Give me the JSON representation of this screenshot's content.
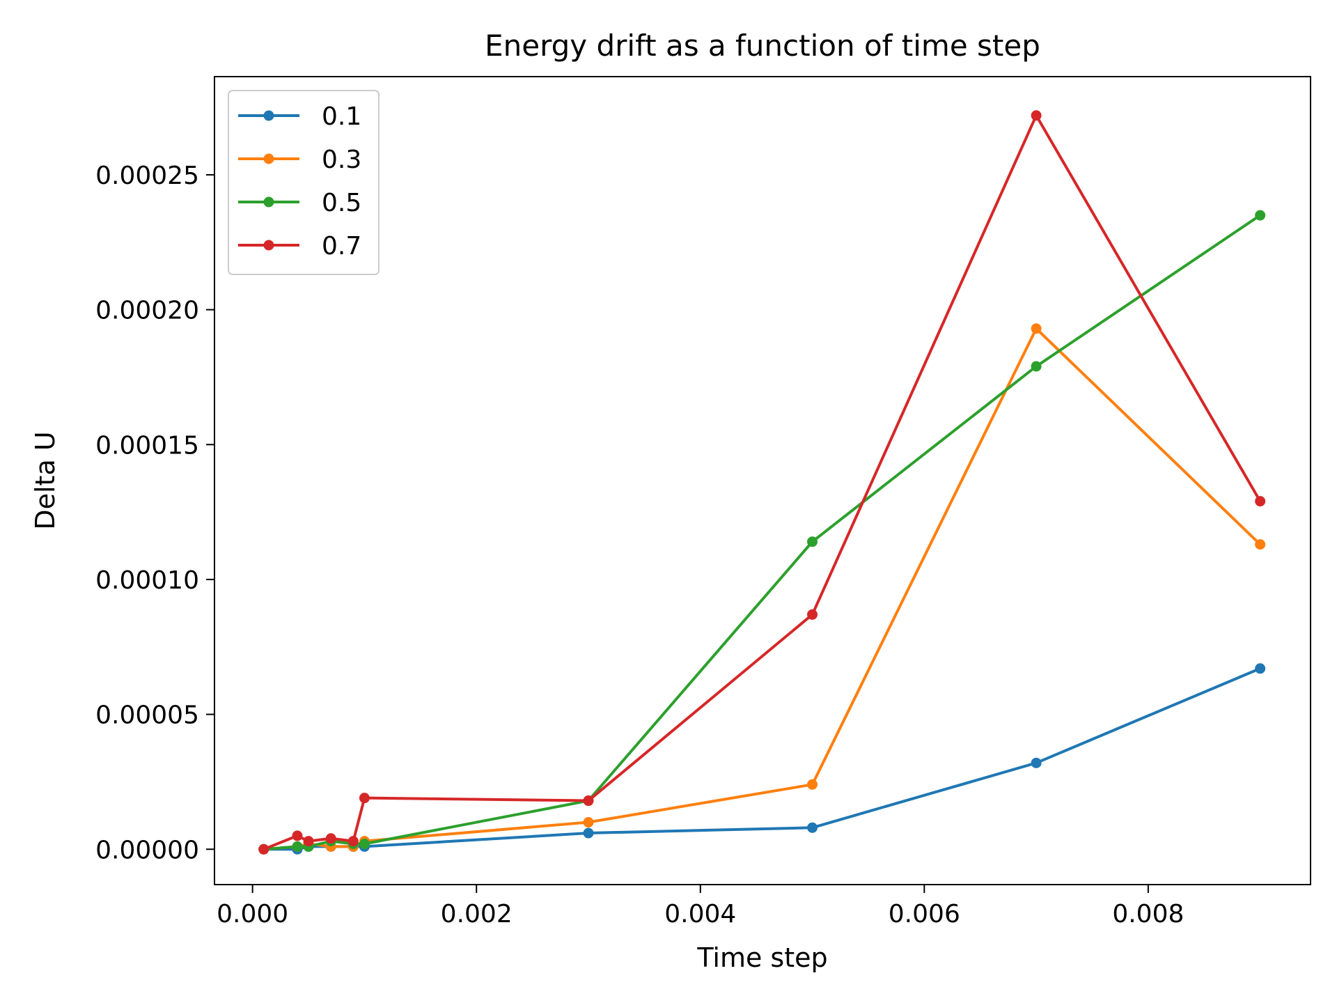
{
  "chart_data": {
    "type": "line",
    "title": "Energy drift as a function of time step",
    "xlabel": "Time step",
    "ylabel": "Delta U",
    "xlim": [
      -0.00034,
      0.00945
    ],
    "ylim": [
      -1.31e-05,
      0.0002864
    ],
    "xticks": [
      0.0,
      0.002,
      0.004,
      0.006,
      0.008
    ],
    "xtick_labels": [
      "0.000",
      "0.002",
      "0.004",
      "0.006",
      "0.008"
    ],
    "yticks": [
      0.0,
      5e-05,
      0.0001,
      0.00015,
      0.0002,
      0.00025
    ],
    "ytick_labels": [
      "0.00000",
      "0.00005",
      "0.00010",
      "0.00015",
      "0.00020",
      "0.00025"
    ],
    "grid": false,
    "legend_position": "top-left",
    "markers": true,
    "series": [
      {
        "name": "0.1",
        "color": "#1f77b4",
        "x": [
          0.0001,
          0.0004,
          0.0005,
          0.0007,
          0.0009,
          0.001,
          0.003,
          0.005,
          0.007,
          0.009
        ],
        "y": [
          0.0,
          0.0,
          1e-06,
          1e-06,
          1e-06,
          1e-06,
          6e-06,
          8e-06,
          3.2e-05,
          6.7e-05
        ]
      },
      {
        "name": "0.3",
        "color": "#ff7f0e",
        "x": [
          0.0001,
          0.0004,
          0.0005,
          0.0007,
          0.0009,
          0.001,
          0.003,
          0.005,
          0.007,
          0.009
        ],
        "y": [
          0.0,
          1e-06,
          2e-06,
          1e-06,
          1e-06,
          3e-06,
          1e-05,
          2.4e-05,
          0.000193,
          0.000113
        ]
      },
      {
        "name": "0.5",
        "color": "#2ca02c",
        "x": [
          0.0001,
          0.0004,
          0.0005,
          0.0007,
          0.0009,
          0.001,
          0.003,
          0.005,
          0.007,
          0.009
        ],
        "y": [
          0.0,
          1e-06,
          1e-06,
          3e-06,
          2e-06,
          2e-06,
          1.8e-05,
          0.000114,
          0.000179,
          0.000235
        ]
      },
      {
        "name": "0.7",
        "color": "#d62728",
        "x": [
          0.0001,
          0.0004,
          0.0005,
          0.0007,
          0.0009,
          0.001,
          0.003,
          0.005,
          0.007,
          0.009
        ],
        "y": [
          0.0,
          5e-06,
          3e-06,
          4e-06,
          3e-06,
          1.9e-05,
          1.8e-05,
          8.7e-05,
          0.000272,
          0.000129
        ]
      }
    ]
  }
}
